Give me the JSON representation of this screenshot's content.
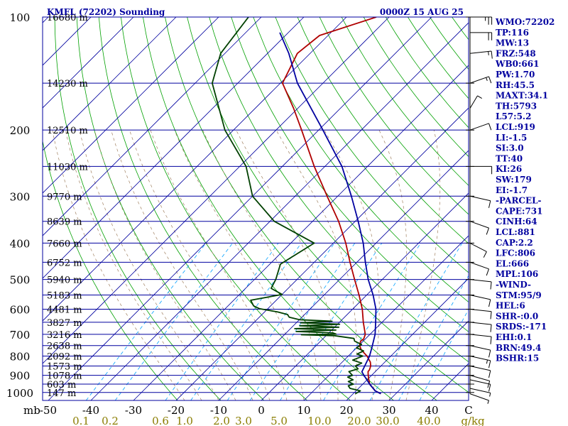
{
  "chart_data": {
    "type": "line",
    "chart_kind": "skew-T log-P sounding",
    "title": "KMFL (72202) Sounding",
    "valid_time": "0000Z 15 AUG 25",
    "pressure_axis_label": "mb",
    "pressure_scale": "log",
    "pressure_ticks": [
      "100",
      "200",
      "300",
      "400",
      "500",
      "600",
      "700",
      "800",
      "900",
      "1000"
    ],
    "temperature_ticks": [
      "-50",
      "-40",
      "-30",
      "-20",
      "-10",
      "0",
      "10",
      "20",
      "30",
      "40",
      "C"
    ],
    "mixing_ratio_unit": "g/kg",
    "mixing_ratio_ticks": [
      "0.1",
      "0.2",
      "0.6",
      "1.0",
      "2.0",
      "3.0",
      "5.0",
      "10.0",
      "20.0",
      "30.0",
      "40.0"
    ],
    "height_labels": [
      {
        "p": 100,
        "label": "16680 m"
      },
      {
        "p": 150,
        "label": "14230 m"
      },
      {
        "p": 200,
        "label": "12510 m"
      },
      {
        "p": 250,
        "label": "11030 m"
      },
      {
        "p": 300,
        "label": "9770 m"
      },
      {
        "p": 350,
        "label": "8639 m"
      },
      {
        "p": 400,
        "label": "7660 m"
      },
      {
        "p": 450,
        "label": "6752 m"
      },
      {
        "p": 500,
        "label": "5940 m"
      },
      {
        "p": 550,
        "label": "5183 m"
      },
      {
        "p": 600,
        "label": "4481 m"
      },
      {
        "p": 650,
        "label": "3827 m"
      },
      {
        "p": 700,
        "label": "3216 m"
      },
      {
        "p": 750,
        "label": "2638 m"
      },
      {
        "p": 800,
        "label": "2092 m"
      },
      {
        "p": 850,
        "label": "1573 m"
      },
      {
        "p": 900,
        "label": "1078 m"
      },
      {
        "p": 950,
        "label": "603 m"
      },
      {
        "p": 1000,
        "label": "147 m"
      }
    ],
    "series": [
      {
        "name": "",
        "kind": "temperature",
        "color": "#b00000",
        "points": [
          {
            "p": 1008,
            "t": 26.5
          },
          {
            "p": 990,
            "t": 24.5
          },
          {
            "p": 950,
            "t": 21.6
          },
          {
            "p": 925,
            "t": 20.4
          },
          {
            "p": 900,
            "t": 19.2
          },
          {
            "p": 880,
            "t": 18.3
          },
          {
            "p": 870,
            "t": 18.2
          },
          {
            "p": 850,
            "t": 17.6
          },
          {
            "p": 830,
            "t": 16.6
          },
          {
            "p": 800,
            "t": 14.4
          },
          {
            "p": 770,
            "t": 11.6
          },
          {
            "p": 750,
            "t": 10.2
          },
          {
            "p": 730,
            "t": 9.4
          },
          {
            "p": 720,
            "t": 9.6
          },
          {
            "p": 700,
            "t": 8.9
          },
          {
            "p": 650,
            "t": 5.6
          },
          {
            "p": 600,
            "t": 2.3
          },
          {
            "p": 550,
            "t": -1.8
          },
          {
            "p": 500,
            "t": -6.5
          },
          {
            "p": 450,
            "t": -11.6
          },
          {
            "p": 400,
            "t": -17.1
          },
          {
            "p": 350,
            "t": -23.9
          },
          {
            "p": 300,
            "t": -32.5
          },
          {
            "p": 250,
            "t": -42.5
          },
          {
            "p": 200,
            "t": -54.0
          },
          {
            "p": 175,
            "t": -61.0
          },
          {
            "p": 150,
            "t": -69.5
          },
          {
            "p": 125,
            "t": -73.0
          },
          {
            "p": 112,
            "t": -72.0
          },
          {
            "p": 100,
            "t": -63.0
          }
        ]
      },
      {
        "name": "",
        "kind": "dewpoint",
        "color": "#004000",
        "points": [
          {
            "p": 1008,
            "t": 20.5
          },
          {
            "p": 990,
            "t": 21.0
          },
          {
            "p": 975,
            "t": 18.0
          },
          {
            "p": 960,
            "t": 17.0
          },
          {
            "p": 950,
            "t": 17.8
          },
          {
            "p": 935,
            "t": 16.0
          },
          {
            "p": 925,
            "t": 16.7
          },
          {
            "p": 910,
            "t": 14.8
          },
          {
            "p": 900,
            "t": 15.5
          },
          {
            "p": 880,
            "t": 13.8
          },
          {
            "p": 865,
            "t": 15.3
          },
          {
            "p": 850,
            "t": 14.0
          },
          {
            "p": 835,
            "t": 14.8
          },
          {
            "p": 820,
            "t": 12.0
          },
          {
            "p": 800,
            "t": 13.4
          },
          {
            "p": 790,
            "t": 11.6
          },
          {
            "p": 775,
            "t": 12.4
          },
          {
            "p": 760,
            "t": 10.0
          },
          {
            "p": 745,
            "t": 10.4
          },
          {
            "p": 730,
            "t": 8.0
          },
          {
            "p": 718,
            "t": 7.2
          },
          {
            "p": 706,
            "t": 2.0
          },
          {
            "p": 702,
            "t": -6.0
          },
          {
            "p": 699,
            "t": 2.0
          },
          {
            "p": 694,
            "t": 1.0
          },
          {
            "p": 688,
            "t": -8.0
          },
          {
            "p": 682,
            "t": 1.0
          },
          {
            "p": 676,
            "t": -9.0
          },
          {
            "p": 670,
            "t": 1.0
          },
          {
            "p": 664,
            "t": -8.5
          },
          {
            "p": 658,
            "t": 0.5
          },
          {
            "p": 652,
            "t": -9.0
          },
          {
            "p": 646,
            "t": -2.0
          },
          {
            "p": 640,
            "t": -10.0
          },
          {
            "p": 630,
            "t": -13.0
          },
          {
            "p": 620,
            "t": -14.0
          },
          {
            "p": 610,
            "t": -17.0
          },
          {
            "p": 598,
            "t": -22.0
          },
          {
            "p": 588,
            "t": -24.0
          },
          {
            "p": 568,
            "t": -26.0
          },
          {
            "p": 548,
            "t": -20.0
          },
          {
            "p": 528,
            "t": -24.0
          },
          {
            "p": 500,
            "t": -25.0
          },
          {
            "p": 455,
            "t": -27.5
          },
          {
            "p": 400,
            "t": -24.5
          },
          {
            "p": 350,
            "t": -39.0
          },
          {
            "p": 300,
            "t": -50.0
          },
          {
            "p": 250,
            "t": -58.5
          },
          {
            "p": 200,
            "t": -72.0
          },
          {
            "p": 150,
            "t": -86.0
          },
          {
            "p": 125,
            "t": -91.0
          },
          {
            "p": 100,
            "t": -93.0
          }
        ]
      },
      {
        "name": "",
        "kind": "parcel",
        "color": "#00009f",
        "points": [
          {
            "p": 1008,
            "t": 26.5
          },
          {
            "p": 990,
            "t": 24.5
          },
          {
            "p": 950,
            "t": 21.6
          },
          {
            "p": 900,
            "t": 18.2
          },
          {
            "p": 881,
            "t": 16.9
          },
          {
            "p": 850,
            "t": 16.2
          },
          {
            "p": 800,
            "t": 15.0
          },
          {
            "p": 750,
            "t": 13.2
          },
          {
            "p": 700,
            "t": 11.2
          },
          {
            "p": 650,
            "t": 8.5
          },
          {
            "p": 600,
            "t": 5.5
          },
          {
            "p": 550,
            "t": 1.5
          },
          {
            "p": 500,
            "t": -3.3
          },
          {
            "p": 450,
            "t": -8.0
          },
          {
            "p": 400,
            "t": -13.0
          },
          {
            "p": 350,
            "t": -19.3
          },
          {
            "p": 300,
            "t": -26.8
          },
          {
            "p": 250,
            "t": -36.0
          },
          {
            "p": 200,
            "t": -49.0
          },
          {
            "p": 150,
            "t": -66.0
          },
          {
            "p": 125,
            "t": -75.0
          },
          {
            "p": 110,
            "t": -82.0
          }
        ]
      }
    ],
    "wind_barbs": [
      {
        "p": 1008,
        "dir": 120,
        "spd": 5
      },
      {
        "p": 975,
        "dir": 110,
        "spd": 8
      },
      {
        "p": 925,
        "dir": 110,
        "spd": 10
      },
      {
        "p": 900,
        "dir": 115,
        "spd": 10
      },
      {
        "p": 850,
        "dir": 110,
        "spd": 12
      },
      {
        "p": 800,
        "dir": 110,
        "spd": 15
      },
      {
        "p": 750,
        "dir": 110,
        "spd": 14
      },
      {
        "p": 700,
        "dir": 100,
        "spd": 13
      },
      {
        "p": 650,
        "dir": 100,
        "spd": 12
      },
      {
        "p": 600,
        "dir": 100,
        "spd": 10
      },
      {
        "p": 550,
        "dir": 110,
        "spd": 10
      },
      {
        "p": 500,
        "dir": 100,
        "spd": 11
      },
      {
        "p": 450,
        "dir": 120,
        "spd": 12
      },
      {
        "p": 400,
        "dir": 130,
        "spd": 14
      },
      {
        "p": 350,
        "dir": 120,
        "spd": 10
      },
      {
        "p": 300,
        "dir": 110,
        "spd": 12
      },
      {
        "p": 250,
        "dir": 90,
        "spd": 14
      },
      {
        "p": 200,
        "dir": 60,
        "spd": 12
      },
      {
        "p": 175,
        "dir": 20,
        "spd": 10
      },
      {
        "p": 150,
        "dir": 60,
        "spd": 15
      },
      {
        "p": 125,
        "dir": 80,
        "spd": 18
      },
      {
        "p": 110,
        "dir": 90,
        "spd": 22
      },
      {
        "p": 100,
        "dir": 90,
        "spd": 25
      }
    ]
  },
  "indices": [
    "WMO:72202",
    "TP:116",
    "MW:13",
    "FRZ:548",
    "WB0:661",
    "PW:1.70",
    "RH:45.5",
    "MAXT:34.1",
    "TH:5793",
    "L57:5.2",
    "LCL:919",
    "LI:-1.5",
    "SI:3.0",
    "TT:40",
    "KI:26",
    "SW:179",
    "EI:-1.7",
    "-PARCEL-",
    "CAPE:731",
    "CINH:64",
    "LCL:881",
    "CAP:2.2",
    "LFC:806",
    "EL:666",
    "MPL:106",
    "-WIND-",
    "STM:95/9",
    "HEL:6",
    "SHR-:0.0",
    "SRDS:-171",
    "EHI:0.1",
    "BRN:49.4",
    "BSHR:15"
  ],
  "colors": {
    "isobar": "#00009f",
    "isotherm": "#00009f",
    "dry_adiabat": "#00a000",
    "moist_adiabat": "#a08060",
    "mixing_ratio": "#00a0ff",
    "title": "#00009f",
    "indices_text": "#00009f",
    "tick_label": "#000000",
    "mixing_label": "#8a7d00"
  }
}
